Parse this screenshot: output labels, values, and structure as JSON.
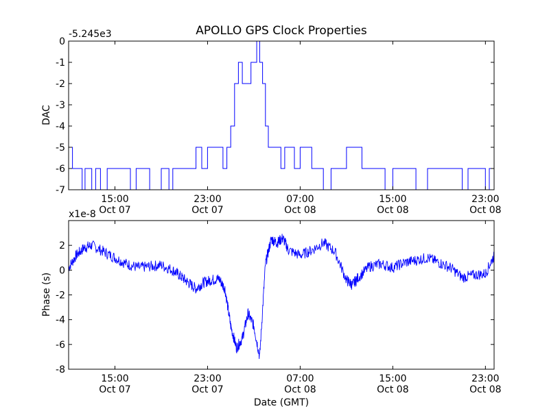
{
  "chart_data": [
    {
      "type": "line",
      "title": "APOLLO GPS Clock Properties",
      "ylabel": "DAC",
      "xlabel": "",
      "offset_label": "-5.245e3",
      "ylim": [
        -7,
        0
      ],
      "yticks": [
        "0",
        "-1",
        "-2",
        "-3",
        "-4",
        "-5",
        "-6",
        "-7"
      ],
      "xlim": [
        "Oct 07 11:00",
        "Oct 08 23:45"
      ],
      "xticks": [
        {
          "time": "15:00",
          "date": "Oct 07"
        },
        {
          "time": "23:00",
          "date": "Oct 07"
        },
        {
          "time": "07:00",
          "date": "Oct 08"
        },
        {
          "time": "15:00",
          "date": "Oct 08"
        },
        {
          "time": "23:00",
          "date": "Oct 08"
        }
      ],
      "grid": false,
      "color": "#0000ff",
      "series": [
        {
          "x": [
            "Oct 07 11:00",
            "Oct 07 11:20",
            "Oct 07 11:35",
            "Oct 07 12:10",
            "Oct 07 12:25",
            "Oct 07 13:00",
            "Oct 07 13:20",
            "Oct 07 13:45",
            "Oct 07 14:20",
            "Oct 07 15:30",
            "Oct 07 16:20",
            "Oct 07 16:50",
            "Oct 07 17:20",
            "Oct 07 18:00",
            "Oct 07 19:00",
            "Oct 07 19:40",
            "Oct 07 20:00",
            "Oct 07 20:30",
            "Oct 07 21:00",
            "Oct 07 22:00",
            "Oct 07 22:30",
            "Oct 07 23:00",
            "Oct 07 23:30",
            "Oct 08 00:00",
            "Oct 08 00:20",
            "Oct 08 00:40",
            "Oct 08 01:00",
            "Oct 08 01:20",
            "Oct 08 01:40",
            "Oct 08 02:00",
            "Oct 08 02:20",
            "Oct 08 02:45",
            "Oct 08 03:00",
            "Oct 08 03:15",
            "Oct 08 03:30",
            "Oct 08 03:45",
            "Oct 08 04:00",
            "Oct 08 04:15",
            "Oct 08 04:30",
            "Oct 08 04:45",
            "Oct 08 05:00",
            "Oct 08 05:20",
            "Oct 08 05:40",
            "Oct 08 06:00",
            "Oct 08 06:30",
            "Oct 08 07:00",
            "Oct 08 07:30",
            "Oct 08 08:00",
            "Oct 08 08:30",
            "Oct 08 09:00",
            "Oct 08 09:40",
            "Oct 08 10:20",
            "Oct 08 11:00",
            "Oct 08 11:40",
            "Oct 08 12:20",
            "Oct 08 13:00",
            "Oct 08 13:40",
            "Oct 08 14:20",
            "Oct 08 15:00",
            "Oct 08 15:40",
            "Oct 08 16:20",
            "Oct 08 17:00",
            "Oct 08 18:00",
            "Oct 08 19:00",
            "Oct 08 20:00",
            "Oct 08 21:00",
            "Oct 08 21:30",
            "Oct 08 22:00",
            "Oct 08 22:30",
            "Oct 08 23:00",
            "Oct 08 23:20",
            "Oct 08 23:45"
          ],
          "y": [
            -5,
            -6,
            -6,
            -7,
            -6,
            -7,
            -6,
            -7,
            -6,
            -6,
            -7,
            -6,
            -6,
            -7,
            -6,
            -7,
            -6,
            -6,
            -6,
            -5,
            -6,
            -5,
            -5,
            -5,
            -6,
            -5,
            -4,
            -2,
            -1,
            -2,
            -2,
            -1,
            -1,
            0,
            -1,
            -2,
            -4,
            -5,
            -5,
            -5,
            -5,
            -6,
            -5,
            -5,
            -6,
            -5,
            -5,
            -6,
            -6,
            -7,
            -6,
            -6,
            -5,
            -5,
            -6,
            -6,
            -6,
            -7,
            -6,
            -6,
            -6,
            -7,
            -6,
            -6,
            -6,
            -7,
            -6,
            -6,
            -6,
            -7,
            -6,
            -6
          ]
        }
      ]
    },
    {
      "type": "line",
      "title": "",
      "ylabel": "Phase (s)",
      "xlabel": "Date (GMT)",
      "offset_label": "x1e-8",
      "ylim": [
        -8,
        4
      ],
      "yticks": [
        "2",
        "0",
        "-2",
        "-4",
        "-6",
        "-8"
      ],
      "xlim": [
        "Oct 07 11:00",
        "Oct 08 23:45"
      ],
      "xticks": [
        {
          "time": "15:00",
          "date": "Oct 07"
        },
        {
          "time": "23:00",
          "date": "Oct 07"
        },
        {
          "time": "07:00",
          "date": "Oct 08"
        },
        {
          "time": "15:00",
          "date": "Oct 08"
        },
        {
          "time": "23:00",
          "date": "Oct 08"
        }
      ],
      "grid": false,
      "color": "#0000ff",
      "series": [
        {
          "x": [
            "Oct 07 11:00",
            "Oct 07 11:40",
            "Oct 07 12:20",
            "Oct 07 13:00",
            "Oct 07 14:00",
            "Oct 07 15:00",
            "Oct 07 16:00",
            "Oct 07 17:00",
            "Oct 07 18:00",
            "Oct 07 19:00",
            "Oct 07 20:00",
            "Oct 07 20:40",
            "Oct 07 21:20",
            "Oct 07 22:00",
            "Oct 07 22:40",
            "Oct 07 23:20",
            "Oct 08 00:00",
            "Oct 08 00:30",
            "Oct 08 01:00",
            "Oct 08 01:30",
            "Oct 08 02:00",
            "Oct 08 02:30",
            "Oct 08 03:00",
            "Oct 08 03:30",
            "Oct 08 04:00",
            "Oct 08 04:30",
            "Oct 08 05:00",
            "Oct 08 05:30",
            "Oct 08 06:00",
            "Oct 08 07:00",
            "Oct 08 08:00",
            "Oct 08 09:00",
            "Oct 08 10:00",
            "Oct 08 11:00",
            "Oct 08 11:30",
            "Oct 08 12:00",
            "Oct 08 13:00",
            "Oct 08 14:00",
            "Oct 08 15:00",
            "Oct 08 16:00",
            "Oct 08 17:00",
            "Oct 08 18:00",
            "Oct 08 19:00",
            "Oct 08 20:00",
            "Oct 08 21:00",
            "Oct 08 22:00",
            "Oct 08 23:00",
            "Oct 08 23:45"
          ],
          "y": [
            0.2,
            1.2,
            1.8,
            2.0,
            1.5,
            1.0,
            0.5,
            0.2,
            0.3,
            0.4,
            0.0,
            -0.5,
            -1.0,
            -1.5,
            -1.0,
            -0.8,
            -0.7,
            -1.5,
            -4.5,
            -6.3,
            -5.5,
            -3.5,
            -4.5,
            -7.0,
            0.5,
            2.5,
            2.2,
            2.6,
            1.6,
            1.2,
            1.6,
            2.2,
            1.5,
            -0.8,
            -1.2,
            -0.6,
            0.3,
            0.5,
            0.2,
            0.6,
            0.8,
            1.0,
            0.6,
            0.2,
            -0.6,
            -0.4,
            -0.3,
            1.2
          ]
        }
      ]
    }
  ]
}
